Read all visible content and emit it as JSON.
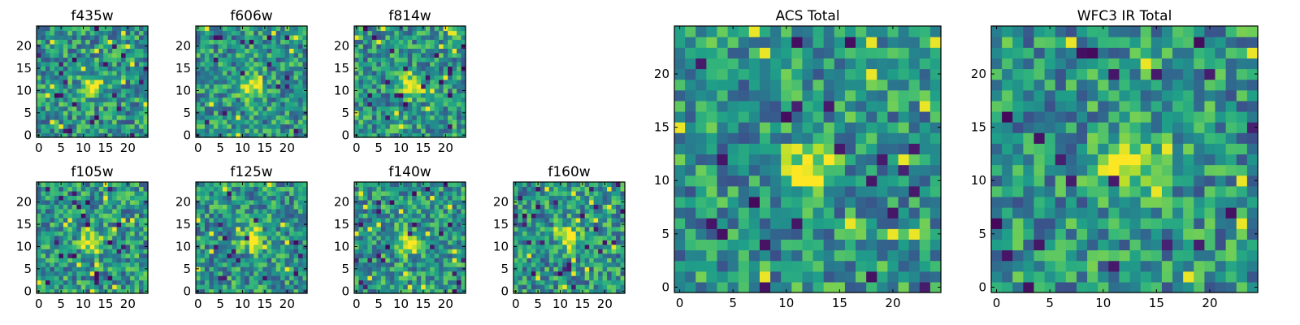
{
  "chart_data": [
    {
      "type": "heatmap",
      "title": "f435w",
      "grid_size": 25,
      "xlim": [
        0,
        24
      ],
      "ylim": [
        0,
        24
      ],
      "xticks": [
        "0",
        "5",
        "10",
        "15",
        "20"
      ],
      "yticks": [
        "0",
        "5",
        "10",
        "15",
        "20"
      ],
      "colormap": "viridis",
      "peak": {
        "x": 12,
        "y": 11
      }
    },
    {
      "type": "heatmap",
      "title": "f606w",
      "grid_size": 25,
      "xlim": [
        0,
        24
      ],
      "ylim": [
        0,
        24
      ],
      "xticks": [
        "0",
        "5",
        "10",
        "15",
        "20"
      ],
      "yticks": [
        "0",
        "5",
        "10",
        "15",
        "20"
      ],
      "colormap": "viridis",
      "peak": {
        "x": 12,
        "y": 11
      }
    },
    {
      "type": "heatmap",
      "title": "f814w",
      "grid_size": 25,
      "xlim": [
        0,
        24
      ],
      "ylim": [
        0,
        24
      ],
      "xticks": [
        "0",
        "5",
        "10",
        "15",
        "20"
      ],
      "yticks": [
        "0",
        "5",
        "10",
        "15",
        "20"
      ],
      "colormap": "viridis",
      "peak": {
        "x": 12,
        "y": 11
      }
    },
    {
      "type": "heatmap",
      "title": "f105w",
      "grid_size": 25,
      "xlim": [
        0,
        24
      ],
      "ylim": [
        0,
        24
      ],
      "xticks": [
        "0",
        "5",
        "10",
        "15",
        "20"
      ],
      "yticks": [
        "0",
        "5",
        "10",
        "15",
        "20"
      ],
      "colormap": "viridis",
      "peak": {
        "x": 12,
        "y": 11
      }
    },
    {
      "type": "heatmap",
      "title": "f125w",
      "grid_size": 25,
      "xlim": [
        0,
        24
      ],
      "ylim": [
        0,
        24
      ],
      "xticks": [
        "0",
        "5",
        "10",
        "15",
        "20"
      ],
      "yticks": [
        "0",
        "5",
        "10",
        "15",
        "20"
      ],
      "colormap": "viridis",
      "peak": {
        "x": 12,
        "y": 12
      }
    },
    {
      "type": "heatmap",
      "title": "f140w",
      "grid_size": 25,
      "xlim": [
        0,
        24
      ],
      "ylim": [
        0,
        24
      ],
      "xticks": [
        "0",
        "5",
        "10",
        "15",
        "20"
      ],
      "yticks": [
        "0",
        "5",
        "10",
        "15",
        "20"
      ],
      "colormap": "viridis",
      "peak": {
        "x": 12,
        "y": 11
      }
    },
    {
      "type": "heatmap",
      "title": "f160w",
      "grid_size": 25,
      "xlim": [
        0,
        24
      ],
      "ylim": [
        0,
        24
      ],
      "xticks": [
        "0",
        "5",
        "10",
        "15",
        "20"
      ],
      "yticks": [
        "0",
        "5",
        "10",
        "15",
        "20"
      ],
      "colormap": "viridis",
      "peak": {
        "x": 12,
        "y": 12
      }
    },
    {
      "type": "heatmap",
      "title": "ACS Total",
      "grid_size": 25,
      "xlim": [
        0,
        24
      ],
      "ylim": [
        0,
        24
      ],
      "xticks": [
        "0",
        "5",
        "10",
        "15",
        "20"
      ],
      "yticks": [
        "0",
        "5",
        "10",
        "15",
        "20"
      ],
      "colormap": "viridis",
      "peak": {
        "x": 12,
        "y": 11
      }
    },
    {
      "type": "heatmap",
      "title": "WFC3 IR Total",
      "grid_size": 25,
      "xlim": [
        0,
        24
      ],
      "ylim": [
        0,
        24
      ],
      "xticks": [
        "0",
        "5",
        "10",
        "15",
        "20"
      ],
      "yticks": [
        "0",
        "5",
        "10",
        "15",
        "20"
      ],
      "colormap": "viridis",
      "peak": {
        "x": 12,
        "y": 12
      }
    }
  ]
}
